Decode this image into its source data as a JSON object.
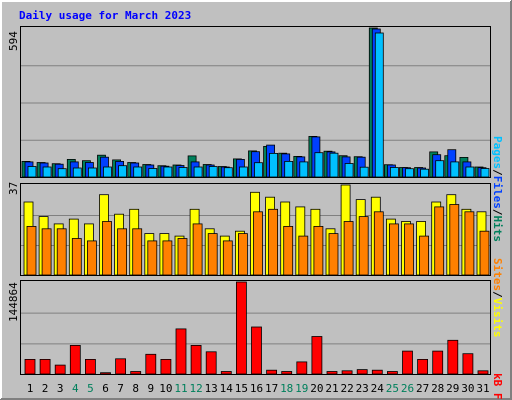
{
  "title": "Daily usage for March 2023",
  "days": [
    "1",
    "2",
    "3",
    "4",
    "5",
    "6",
    "7",
    "8",
    "9",
    "10",
    "11",
    "12",
    "13",
    "14",
    "15",
    "16",
    "17",
    "18",
    "19",
    "20",
    "21",
    "22",
    "23",
    "24",
    "25",
    "26",
    "27",
    "28",
    "29",
    "30",
    "31"
  ],
  "weekend_days": [
    4,
    5,
    11,
    12,
    18,
    19,
    25,
    26
  ],
  "labels": {
    "top_max": "594",
    "mid_max": "37",
    "bottom_max": "144864",
    "right_top": [
      "Pages",
      "Files",
      "Hits"
    ],
    "right_mid": [
      "Sites",
      "Visits"
    ],
    "right_bottom": "kB F"
  },
  "colors": {
    "hits": "#00805c",
    "files": "#0040ff",
    "pages": "#00c0ff",
    "visits": "#ffff00",
    "sites": "#ff8000",
    "kbytes": "#ff0000",
    "title": "#0000ff",
    "weekend": "#00805c"
  },
  "chart_data": [
    {
      "type": "bar",
      "categories": [
        "1",
        "2",
        "3",
        "4",
        "5",
        "6",
        "7",
        "8",
        "9",
        "10",
        "11",
        "12",
        "13",
        "14",
        "15",
        "16",
        "17",
        "18",
        "19",
        "20",
        "21",
        "22",
        "23",
        "24",
        "25",
        "26",
        "27",
        "28",
        "29",
        "30",
        "31"
      ],
      "ylim": [
        0,
        594
      ],
      "series": [
        {
          "name": "Hits",
          "values": [
            62,
            58,
            53,
            70,
            65,
            87,
            68,
            58,
            50,
            45,
            48,
            84,
            50,
            42,
            72,
            104,
            122,
            95,
            82,
            162,
            103,
            85,
            81,
            594,
            49,
            38,
            38,
            100,
            85,
            78,
            40
          ]
        },
        {
          "name": "Files",
          "values": [
            60,
            56,
            51,
            60,
            58,
            79,
            62,
            56,
            48,
            43,
            46,
            60,
            48,
            40,
            70,
            101,
            127,
            92,
            80,
            160,
            100,
            80,
            79,
            590,
            48,
            37,
            36,
            89,
            109,
            60,
            37
          ]
        },
        {
          "name": "Pages",
          "values": [
            42,
            40,
            33,
            36,
            36,
            40,
            45,
            40,
            34,
            40,
            38,
            40,
            42,
            37,
            40,
            57,
            94,
            62,
            60,
            97,
            95,
            54,
            39,
            574,
            38,
            33,
            31,
            65,
            60,
            40,
            34
          ]
        }
      ]
    },
    {
      "type": "bar",
      "categories": [
        "1",
        "2",
        "3",
        "4",
        "5",
        "6",
        "7",
        "8",
        "9",
        "10",
        "11",
        "12",
        "13",
        "14",
        "15",
        "16",
        "17",
        "18",
        "19",
        "20",
        "21",
        "22",
        "23",
        "24",
        "25",
        "26",
        "27",
        "28",
        "29",
        "30",
        "31"
      ],
      "ylim": [
        0,
        37
      ],
      "series": [
        {
          "name": "Visits",
          "values": [
            30,
            24,
            21,
            23,
            21,
            33,
            25,
            27,
            17,
            17,
            16,
            27,
            19,
            16,
            18,
            34,
            32,
            30,
            28,
            27,
            19,
            37,
            31,
            32,
            23,
            22,
            22,
            30,
            33,
            27,
            26
          ]
        },
        {
          "name": "Sites",
          "values": [
            20,
            19,
            19,
            15,
            14,
            22,
            19,
            19,
            14,
            14,
            15,
            21,
            17,
            14,
            17,
            26,
            27,
            20,
            16,
            20,
            17,
            22,
            24,
            26,
            21,
            21,
            16,
            28,
            29,
            26,
            18
          ]
        }
      ]
    },
    {
      "type": "bar",
      "categories": [
        "1",
        "2",
        "3",
        "4",
        "5",
        "6",
        "7",
        "8",
        "9",
        "10",
        "11",
        "12",
        "13",
        "14",
        "15",
        "16",
        "17",
        "18",
        "19",
        "20",
        "21",
        "22",
        "23",
        "24",
        "25",
        "26",
        "27",
        "28",
        "29",
        "30",
        "31"
      ],
      "ylim": [
        0,
        144864
      ],
      "series": [
        {
          "name": "kB F",
          "values": [
            23000,
            23000,
            14000,
            45000,
            23000,
            2000,
            24000,
            4000,
            31000,
            23000,
            71000,
            45000,
            35000,
            4000,
            144864,
            74000,
            6000,
            4000,
            19000,
            59000,
            4000,
            5000,
            7000,
            6000,
            4000,
            36000,
            23000,
            36000,
            53000,
            32000,
            5000
          ]
        }
      ]
    }
  ]
}
